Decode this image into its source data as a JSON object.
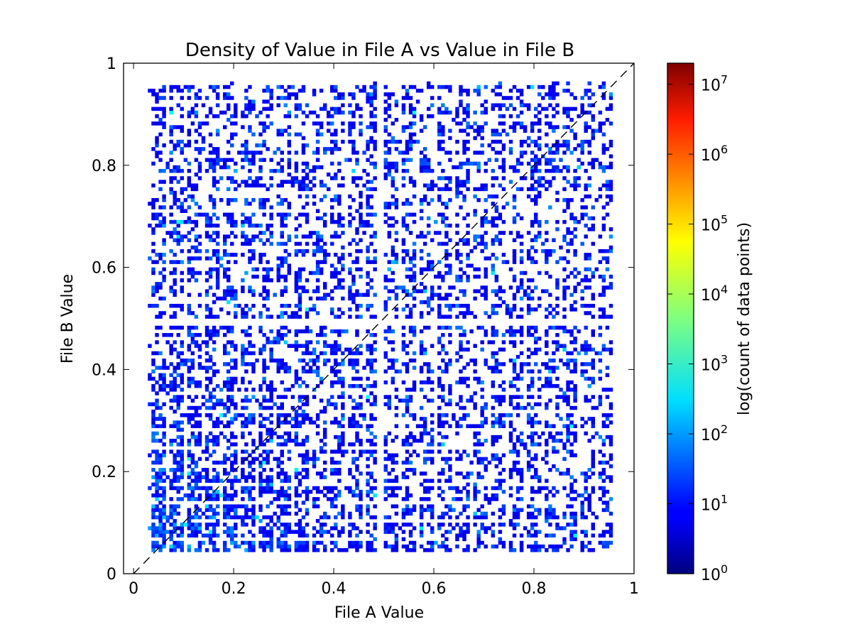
{
  "chart_data": {
    "type": "heatmap",
    "title": "Density of Value in File A vs Value in File B",
    "xlabel": "File A Value",
    "ylabel": "File B Value",
    "xlim": [
      -0.02,
      1.0
    ],
    "ylim": [
      0,
      1.0
    ],
    "x_ticks": [
      0,
      0.2,
      0.4,
      0.6,
      0.8,
      1.0
    ],
    "x_tick_labels": [
      "0",
      "0.2",
      "0.4",
      "0.6",
      "0.8",
      "1"
    ],
    "y_ticks": [
      0,
      0.2,
      0.4,
      0.6,
      0.8,
      1.0
    ],
    "y_tick_labels": [
      "0",
      "0.2",
      "0.4",
      "0.6",
      "0.8",
      "1"
    ],
    "grid": false,
    "reference_line": {
      "style": "dashed",
      "color": "#000000",
      "from": [
        0,
        0
      ],
      "to": [
        1,
        1
      ]
    },
    "colorbar": {
      "label": "log(count of data points)",
      "scale": "log",
      "range": [
        1,
        20000000
      ],
      "ticks": [
        {
          "value": 1,
          "base": "10",
          "exp": "0"
        },
        {
          "value": 10,
          "base": "10",
          "exp": "1"
        },
        {
          "value": 100,
          "base": "10",
          "exp": "2"
        },
        {
          "value": 1000,
          "base": "10",
          "exp": "3"
        },
        {
          "value": 10000,
          "base": "10",
          "exp": "4"
        },
        {
          "value": 100000,
          "base": "10",
          "exp": "5"
        },
        {
          "value": 1000000,
          "base": "10",
          "exp": "6"
        },
        {
          "value": 10000000,
          "base": "10",
          "exp": "7"
        }
      ],
      "colormap": "jet"
    },
    "data_extent": {
      "x": [
        0.025,
        0.95
      ],
      "y": [
        0.04,
        0.96
      ]
    },
    "empty_bands": {
      "x": [
        [
          0.48,
          0.5
        ]
      ],
      "y": [
        [
          0.48,
          0.5
        ]
      ]
    },
    "density_trend": "highest near the origin (low A and low B values), decreasing toward high values"
  }
}
